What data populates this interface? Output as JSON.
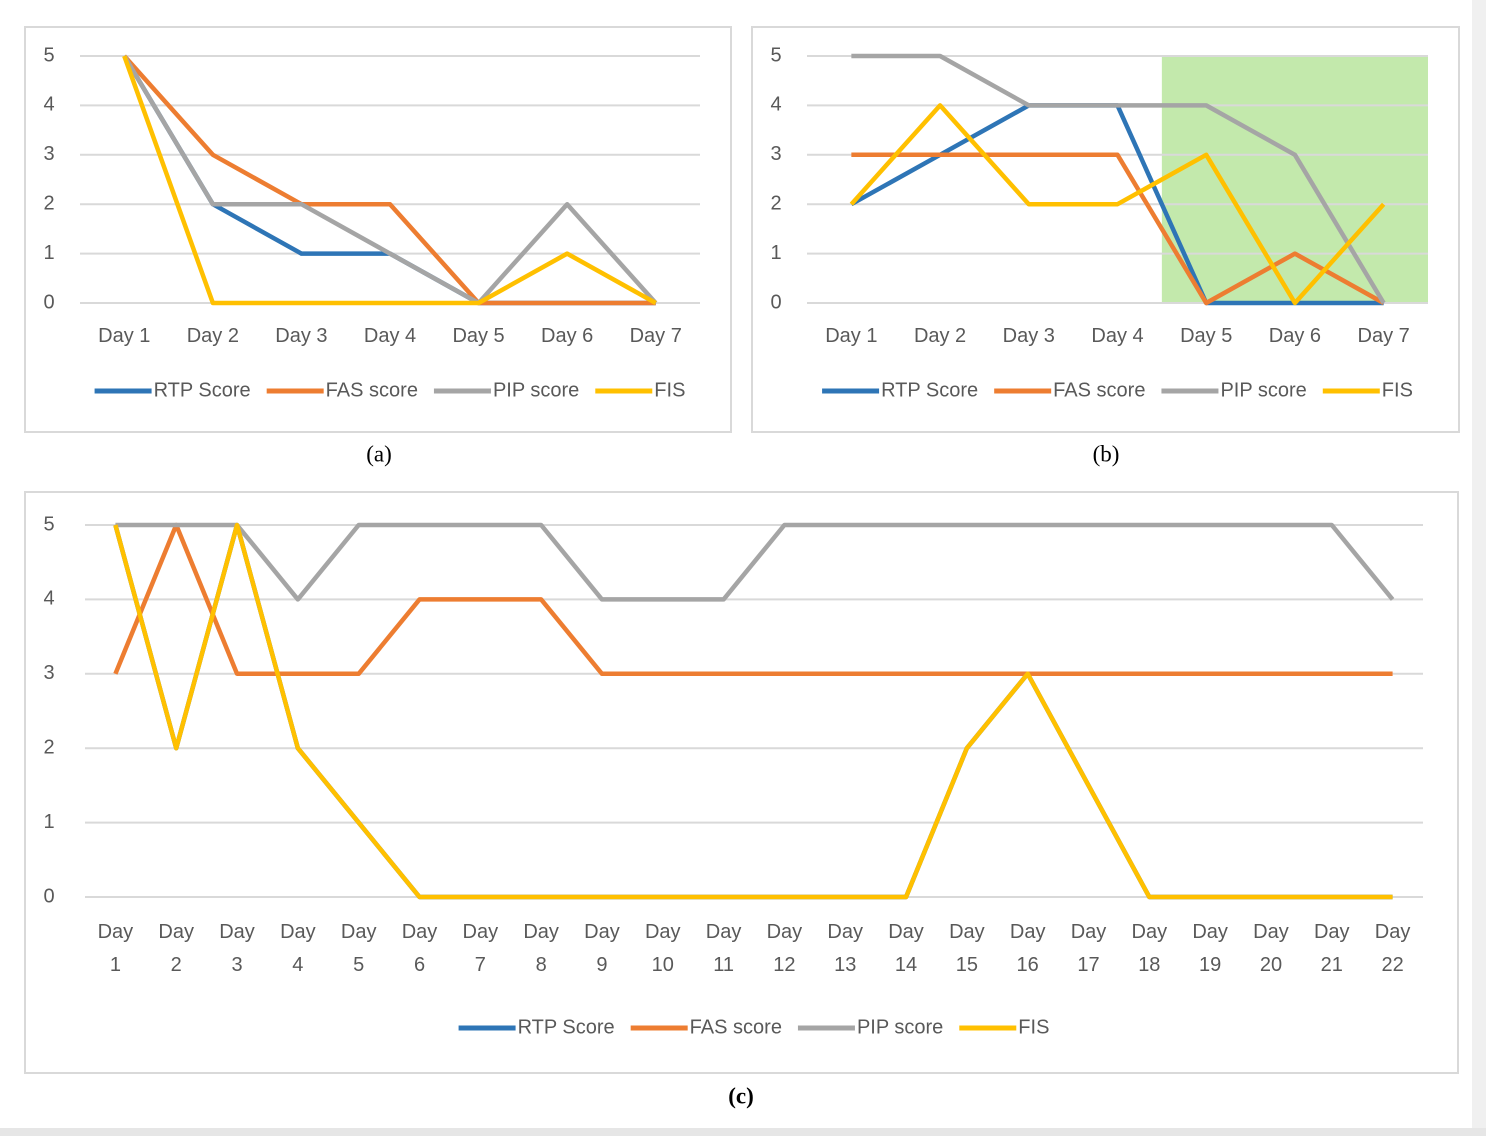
{
  "chart_data": [
    {
      "type": "line",
      "caption": "(a)",
      "categories": [
        "Day 1",
        "Day 2",
        "Day 3",
        "Day 4",
        "Day 5",
        "Day 6",
        "Day 7"
      ],
      "ylim": [
        0,
        5
      ],
      "yticks": [
        0,
        1,
        2,
        3,
        4,
        5
      ],
      "grid": true,
      "legend": "bottom",
      "series": [
        {
          "name": "RTP Score",
          "color": "#2e75b6",
          "values": [
            5,
            2,
            1,
            1,
            0,
            0,
            0
          ]
        },
        {
          "name": "FAS score",
          "color": "#ed7d31",
          "values": [
            5,
            3,
            2,
            2,
            0,
            0,
            0
          ]
        },
        {
          "name": "PIP score",
          "color": "#a5a5a5",
          "values": [
            5,
            2,
            2,
            1,
            0,
            2,
            0
          ]
        },
        {
          "name": "FIS",
          "color": "#ffc000",
          "values": [
            5,
            0,
            0,
            0,
            0,
            1,
            0
          ]
        }
      ]
    },
    {
      "type": "line",
      "caption": "(b)",
      "categories": [
        "Day 1",
        "Day 2",
        "Day 3",
        "Day 4",
        "Day 5",
        "Day 6",
        "Day 7"
      ],
      "ylim": [
        0,
        5
      ],
      "yticks": [
        0,
        1,
        2,
        3,
        4,
        5
      ],
      "grid": true,
      "legend": "bottom",
      "shaded": {
        "start": 4,
        "end": 6,
        "color": "#c3e9ac"
      },
      "series": [
        {
          "name": "RTP Score",
          "color": "#2e75b6",
          "values": [
            2,
            3,
            4,
            4,
            0,
            0,
            0
          ]
        },
        {
          "name": "FAS score",
          "color": "#ed7d31",
          "values": [
            3,
            3,
            3,
            3,
            0,
            1,
            0
          ]
        },
        {
          "name": "PIP score",
          "color": "#a5a5a5",
          "values": [
            5,
            5,
            4,
            4,
            4,
            3,
            0
          ]
        },
        {
          "name": "FIS",
          "color": "#ffc000",
          "values": [
            2,
            4,
            2,
            2,
            3,
            0,
            2
          ]
        }
      ]
    },
    {
      "type": "line",
      "caption": "(c)",
      "categories": [
        "Day 1",
        "Day 2",
        "Day 3",
        "Day 4",
        "Day 5",
        "Day 6",
        "Day 7",
        "Day 8",
        "Day 9",
        "Day 10",
        "Day 11",
        "Day 12",
        "Day 13",
        "Day 14",
        "Day 15",
        "Day 16",
        "Day 17",
        "Day 18",
        "Day 19",
        "Day 20",
        "Day 21",
        "Day 22"
      ],
      "ylim": [
        0,
        5
      ],
      "yticks": [
        0,
        1,
        2,
        3,
        4,
        5
      ],
      "grid": true,
      "legend": "bottom",
      "series": [
        {
          "name": "RTP Score",
          "color": "#2e75b6",
          "values": [
            5,
            2,
            5,
            2,
            1,
            0,
            0,
            0,
            0,
            0,
            0,
            0,
            0,
            0,
            2,
            3,
            1.5,
            0,
            0,
            0,
            0,
            0
          ]
        },
        {
          "name": "FAS score",
          "color": "#ed7d31",
          "values": [
            3,
            5,
            3,
            3,
            3,
            4,
            4,
            4,
            3,
            3,
            3,
            3,
            3,
            3,
            3,
            3,
            3,
            3,
            3,
            3,
            3,
            3
          ]
        },
        {
          "name": "PIP score",
          "color": "#a5a5a5",
          "values": [
            5,
            5,
            5,
            4,
            5,
            5,
            5,
            5,
            4,
            4,
            4,
            5,
            5,
            5,
            5,
            5,
            5,
            5,
            5,
            5,
            5,
            4
          ]
        },
        {
          "name": "FIS",
          "color": "#ffc000",
          "values": [
            5,
            2,
            5,
            2,
            1,
            0,
            0,
            0,
            0,
            0,
            0,
            0,
            0,
            0,
            2,
            3,
            1.5,
            0,
            0,
            0,
            0,
            0
          ]
        }
      ]
    }
  ]
}
